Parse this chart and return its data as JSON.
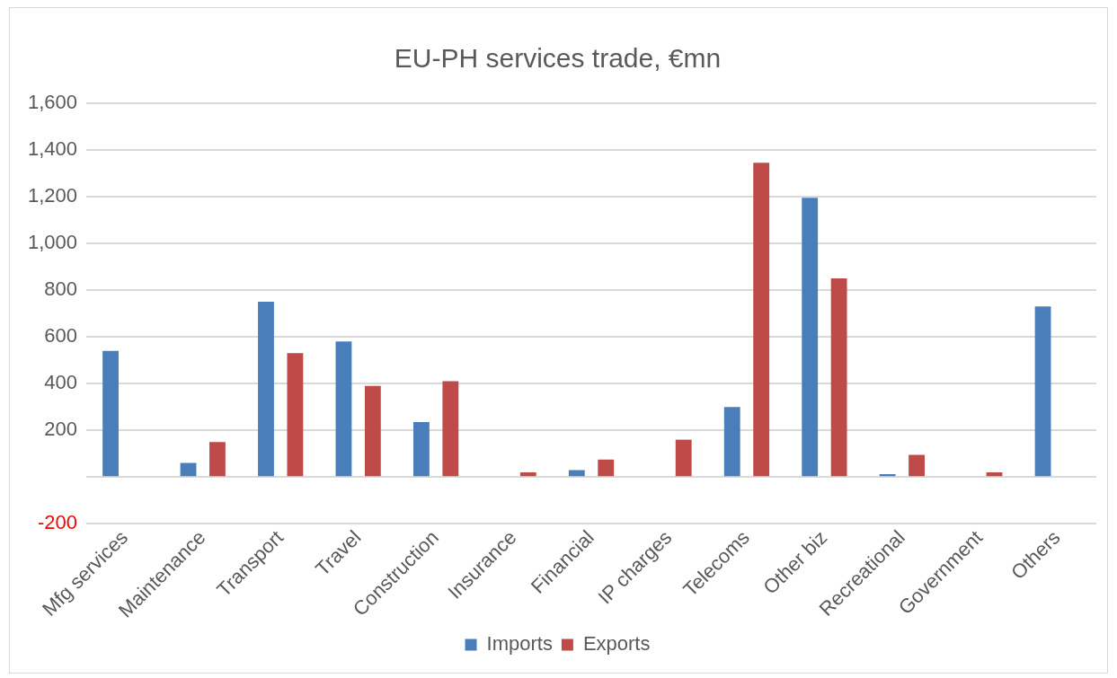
{
  "chart_data": {
    "type": "bar",
    "title": "EU-PH services trade, €mn",
    "categories": [
      "Mfg services",
      "Maintenance",
      "Transport",
      "Travel",
      "Construction",
      "Insurance",
      "Financial",
      "IP charges",
      "Telecoms",
      "Other biz",
      "Recreational",
      "Government",
      "Others"
    ],
    "series": [
      {
        "name": "Imports",
        "color": "#4a7ebb",
        "values": [
          540,
          60,
          750,
          580,
          235,
          0,
          30,
          0,
          300,
          1195,
          12,
          0,
          730
        ]
      },
      {
        "name": "Exports",
        "color": "#be4b48",
        "values": [
          0,
          150,
          530,
          390,
          410,
          20,
          75,
          160,
          1345,
          850,
          95,
          20,
          0
        ]
      }
    ],
    "ylim": [
      -200,
      1600
    ],
    "yticks": [
      -200,
      {
        "value": 0,
        "label": null
      },
      200,
      400,
      600,
      800,
      {
        "value": 1000,
        "label": "1,000"
      },
      {
        "value": 1200,
        "label": "1,200"
      },
      {
        "value": 1400,
        "label": "1,400"
      },
      {
        "value": 1600,
        "label": "1,600"
      }
    ],
    "grid": "y",
    "legend": "bottom"
  }
}
